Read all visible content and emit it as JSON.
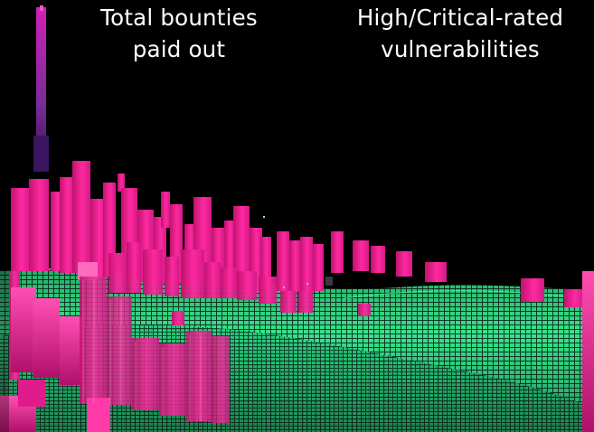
{
  "captions": {
    "left": {
      "line1": "Total bounties",
      "line2": "paid out"
    },
    "right": {
      "line1": "High/Critical-rated",
      "line2": "vulnerabilities"
    }
  },
  "colors": {
    "background": "#000000",
    "bar_pink": "#ff2aa0",
    "bar_pink_dark": "#9e0f5e",
    "terrain_green": "#2fe08a",
    "terrain_green_dark": "#0b4a2e",
    "text": "#ffffff"
  }
}
